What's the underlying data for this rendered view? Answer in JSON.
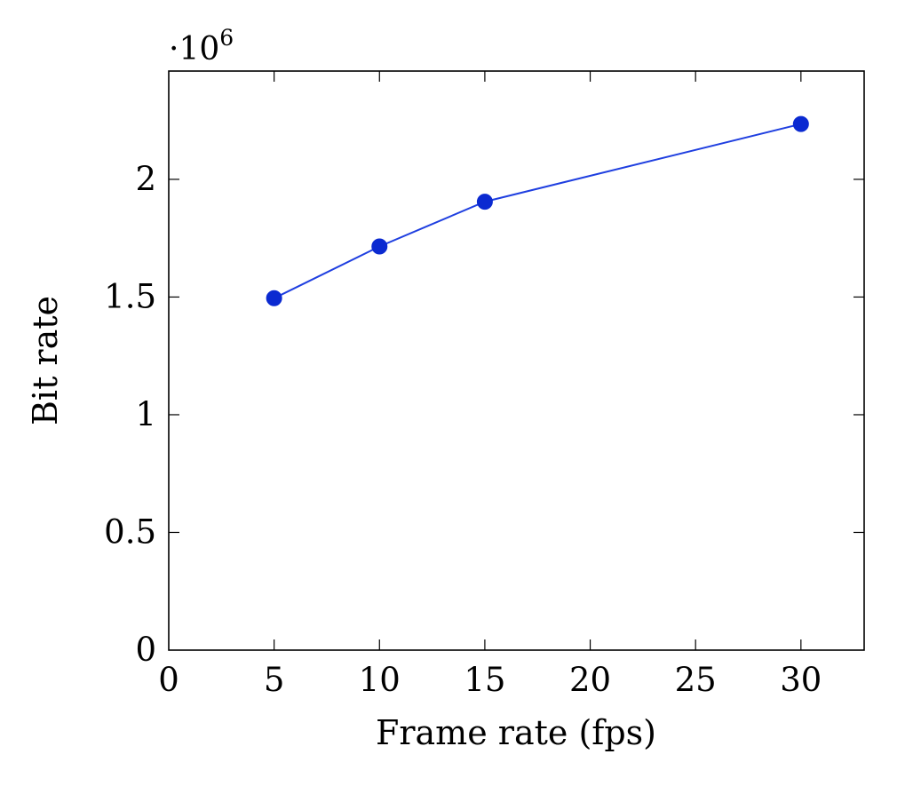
{
  "chart_data": {
    "type": "line",
    "title": "",
    "xlabel": "Frame rate (fps)",
    "ylabel": "Bit rate",
    "y_scale_base": "·10",
    "y_scale_exponent": "6",
    "xlim": [
      0,
      33
    ],
    "ylim": [
      0,
      2.46
    ],
    "x_ticks": [
      0,
      5,
      10,
      15,
      20,
      25,
      30
    ],
    "x_tick_labels": [
      "0",
      "5",
      "10",
      "15",
      "20",
      "25",
      "30"
    ],
    "y_ticks": [
      0,
      0.5,
      1,
      1.5,
      2
    ],
    "y_tick_labels": [
      "0",
      "0.5",
      "1",
      "1.5",
      "2"
    ],
    "grid": false,
    "legend": "none",
    "series": [
      {
        "x": [
          5,
          10,
          15,
          30
        ],
        "y": [
          1.495,
          1.715,
          1.905,
          2.235
        ],
        "color": "#1f3fe0",
        "marker_color": "#0b2ad1",
        "marker": "circle"
      }
    ]
  }
}
